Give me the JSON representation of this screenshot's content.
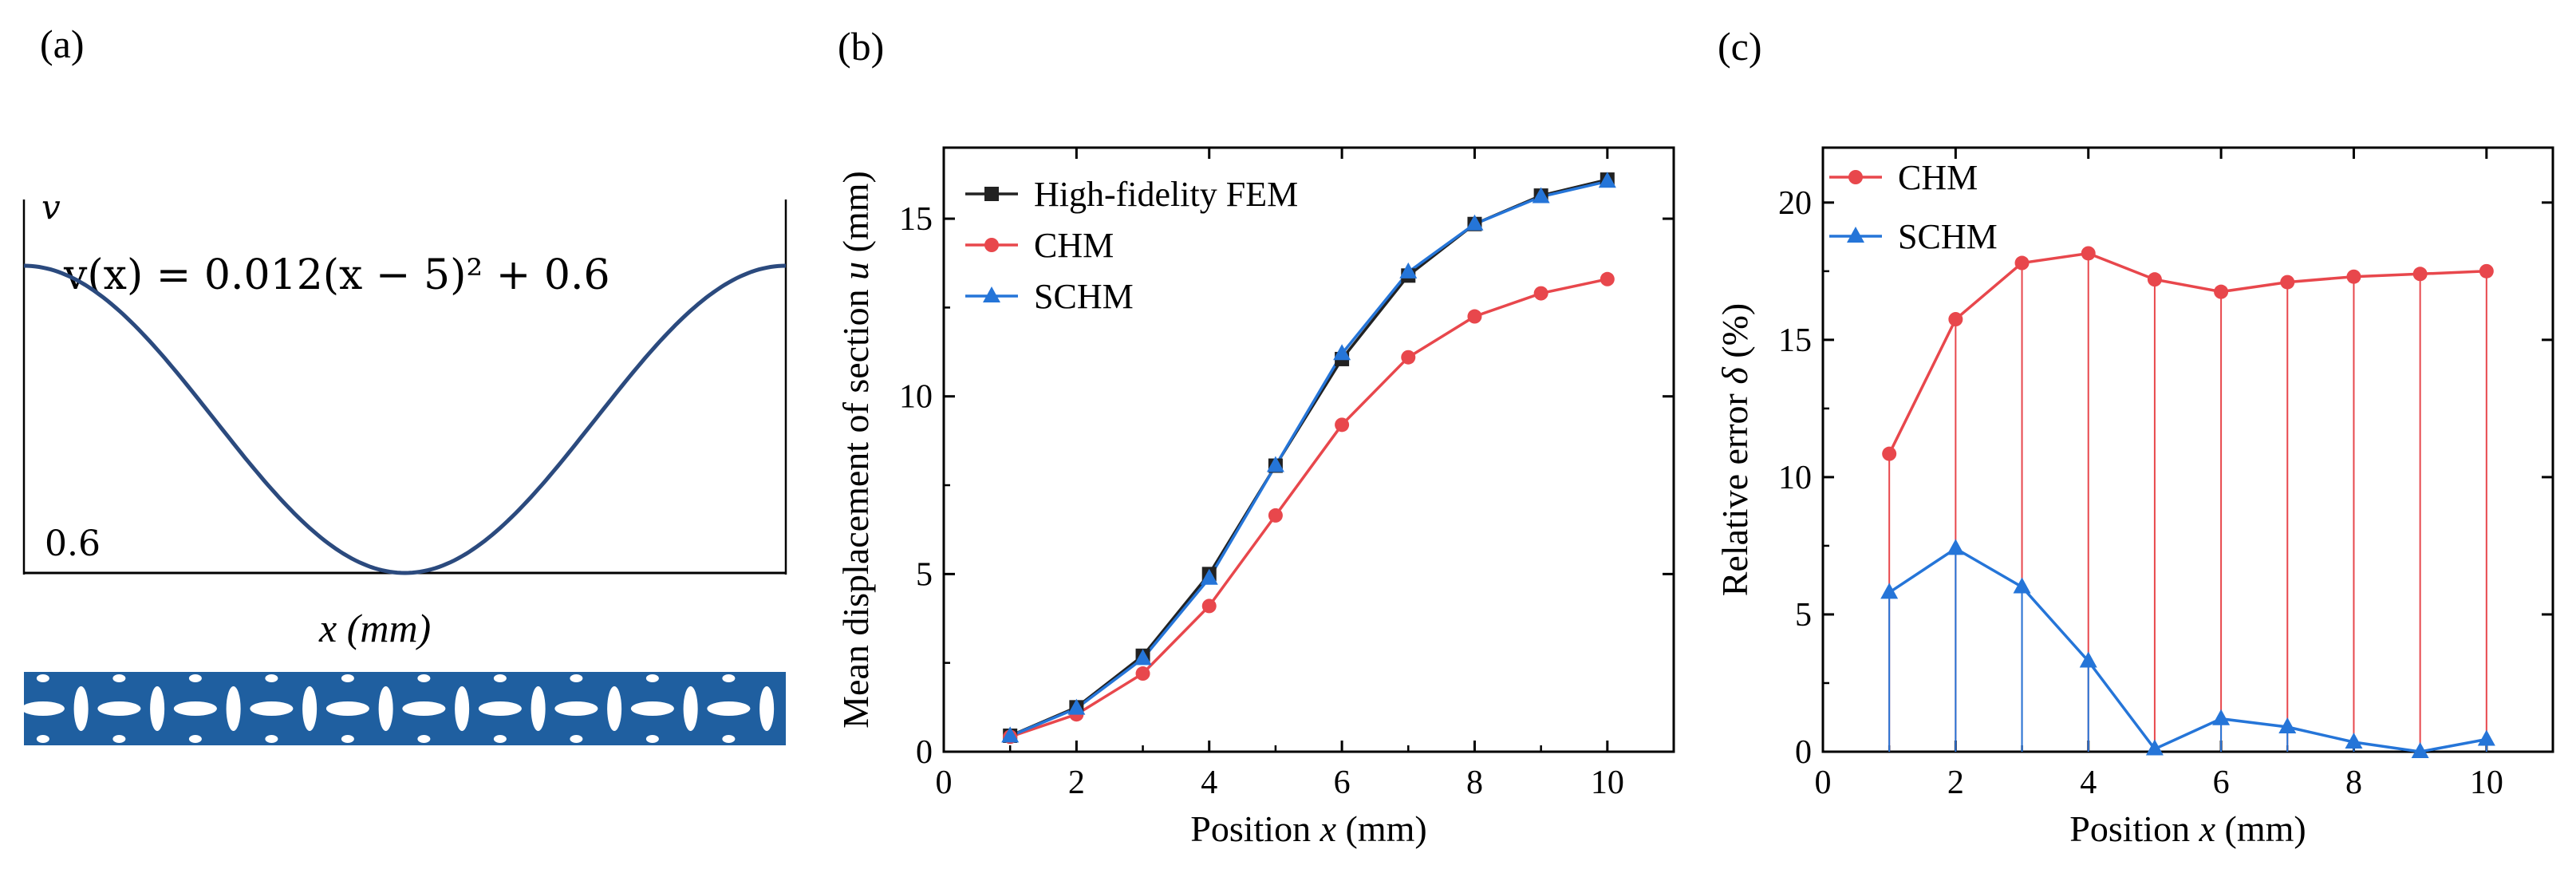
{
  "panels": {
    "a": {
      "letter": "(a)",
      "v_label": "v",
      "equation": "v(x) = 0.012(x − 5)² + 0.6",
      "min_label": "0.6",
      "x_label": "x (mm)",
      "curve_color": "#2b4a7e",
      "strip_color": "#1f5fa0"
    },
    "b": {
      "letter": "(b)"
    },
    "c": {
      "letter": "(c)"
    }
  },
  "chart_data": [
    {
      "id": "b",
      "type": "line",
      "xlabel_prefix": "Position ",
      "xlabel_var": "x",
      "xlabel_suffix": " (mm)",
      "ylabel_prefix": "Mean displacement of section  ",
      "ylabel_var": "u",
      "ylabel_suffix": " (mm)",
      "xlim": [
        0,
        11
      ],
      "ylim": [
        0,
        17
      ],
      "xticks": [
        0,
        2,
        4,
        6,
        8,
        10
      ],
      "yticks": [
        0,
        5,
        10,
        15
      ],
      "x": [
        1,
        2,
        3,
        4,
        5,
        6,
        7,
        8,
        9,
        10
      ],
      "legend_position": "top-left",
      "series": [
        {
          "name": "High-fidelity FEM",
          "color": "#222222",
          "marker": "square",
          "values": [
            0.45,
            1.25,
            2.7,
            5.0,
            8.05,
            11.05,
            13.4,
            14.85,
            15.65,
            16.1
          ]
        },
        {
          "name": "CHM",
          "color": "#e8474c",
          "marker": "circle",
          "values": [
            0.42,
            1.05,
            2.2,
            4.1,
            6.65,
            9.2,
            11.1,
            12.25,
            12.9,
            13.3
          ]
        },
        {
          "name": "SCHM",
          "color": "#2575d8",
          "marker": "triangle",
          "values": [
            0.44,
            1.22,
            2.62,
            4.88,
            8.05,
            11.2,
            13.5,
            14.85,
            15.62,
            16.05
          ]
        }
      ]
    },
    {
      "id": "c",
      "type": "line",
      "xlabel_prefix": "Position ",
      "xlabel_var": "x",
      "xlabel_suffix": " (mm)",
      "ylabel_prefix": "Relative error ",
      "ylabel_var": "δ",
      "ylabel_suffix": " (%)",
      "xlim": [
        0,
        11
      ],
      "ylim": [
        0,
        22
      ],
      "xticks": [
        0,
        2,
        4,
        6,
        8,
        10
      ],
      "yticks": [
        0,
        5,
        10,
        15,
        20
      ],
      "x": [
        1,
        2,
        3,
        4,
        5,
        6,
        7,
        8,
        9,
        10
      ],
      "drop_lines": true,
      "legend_position": "top-left",
      "series": [
        {
          "name": "CHM",
          "color": "#e8474c",
          "marker": "circle",
          "values": [
            10.85,
            15.75,
            17.8,
            18.15,
            17.2,
            16.75,
            17.1,
            17.3,
            17.4,
            17.5
          ]
        },
        {
          "name": "SCHM",
          "color": "#2575d8",
          "marker": "triangle",
          "values": [
            5.8,
            7.4,
            6.0,
            3.3,
            0.1,
            1.2,
            0.9,
            0.35,
            0.0,
            0.45
          ]
        }
      ]
    }
  ]
}
